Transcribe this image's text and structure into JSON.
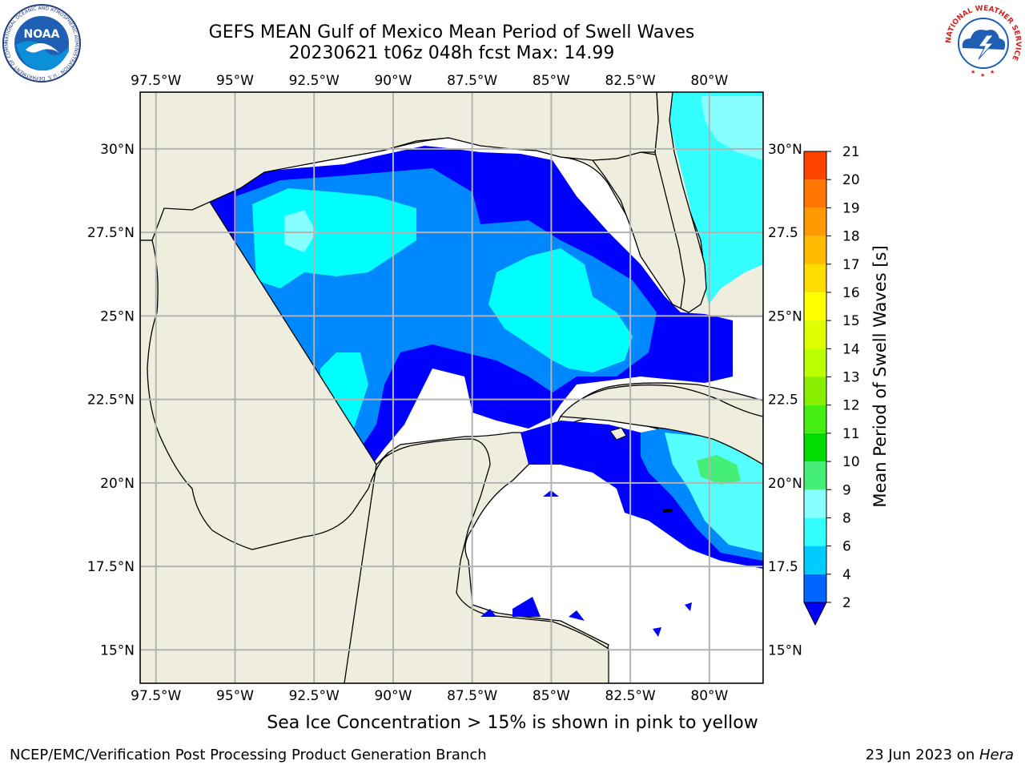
{
  "header": {
    "title": "GEFS MEAN Gulf of Mexico Mean Period of Swell Waves",
    "subtitle": "20230621 t06z 048h fcst   Max: 14.99"
  },
  "logos": {
    "noaa_text": "NOAA",
    "noaa_ring": "NATIONAL OCEANIC AND ATMOSPHERIC ADMINISTRATION · U.S. DEPARTMENT OF COMMERCE",
    "nws_ring": "NATIONAL WEATHER SERVICE"
  },
  "map": {
    "lon_labels": [
      "97.5°W",
      "95°W",
      "92.5°W",
      "90°W",
      "87.5°W",
      "85°W",
      "82.5°W",
      "80°W"
    ],
    "lon_values": [
      -97.5,
      -95,
      -92.5,
      -90,
      -87.5,
      -85,
      -82.5,
      -80
    ],
    "lat_labels_left": [
      "30°N",
      "27.5°N",
      "25°N",
      "22.5°N",
      "20°N",
      "17.5°N",
      "15°N"
    ],
    "lat_labels_right": [
      "30°N",
      "27.5",
      "25°N",
      "22.5",
      "20°N",
      "17.5",
      "15°N"
    ],
    "lat_values": [
      30,
      27.5,
      25,
      22.5,
      20,
      17.5,
      15
    ],
    "extent": {
      "lon_min": -98,
      "lon_max": -78.3,
      "lat_min": 14,
      "lat_max": 31.7
    },
    "colors": {
      "land": "#efedde",
      "ocean_nodata": "#ffffff",
      "grid": "#b3b3b3",
      "coast": "#000000"
    }
  },
  "colorbar": {
    "label": "Mean Period of Swell Waves [s]",
    "ticks": [
      "2",
      "4",
      "6",
      "8",
      "9",
      "10",
      "11",
      "12",
      "13",
      "14",
      "15",
      "16",
      "17",
      "18",
      "19",
      "20",
      "21"
    ],
    "colors": [
      "#0066ff",
      "#00ccff",
      "#33ffff",
      "#88ffff",
      "#44ee77",
      "#00dd00",
      "#44ee11",
      "#88ee00",
      "#bbff00",
      "#ddff00",
      "#ffff00",
      "#ffdd00",
      "#ffbb00",
      "#ff9900",
      "#ff7700",
      "#ff4400",
      "#ff1100"
    ],
    "under_color": "#0000ff"
  },
  "caption": "Sea Ice Concentration > 15% is shown in pink to yellow",
  "footer": {
    "left": "NCEP/EMC/Verification Post Processing Product Generation Branch",
    "right_date": "23 Jun 2023 on ",
    "right_host": "Hera"
  }
}
